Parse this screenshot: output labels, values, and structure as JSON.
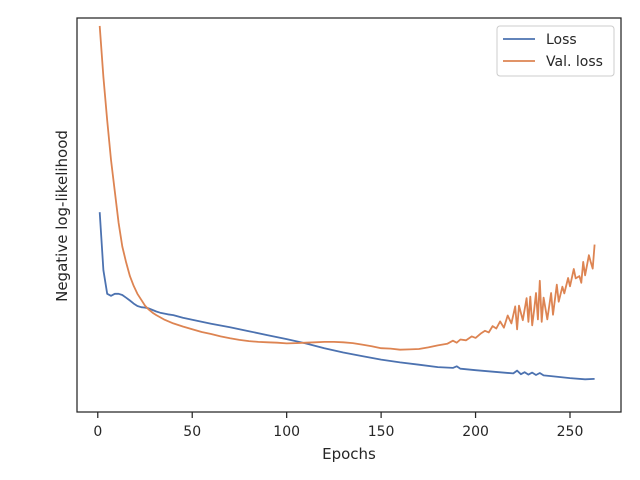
{
  "chart_data": {
    "type": "line",
    "title": "",
    "xlabel": "Epochs",
    "ylabel": "Negative log-likelihood",
    "xlim": [
      -11,
      277
    ],
    "ylim": [
      0,
      100
    ],
    "xticks": [
      0,
      50,
      100,
      150,
      200,
      250
    ],
    "yticks_visible": false,
    "grid": false,
    "legend_position": "top-right",
    "series": [
      {
        "name": "Loss",
        "color": "#4c72b0",
        "points": [
          [
            1,
            50.7
          ],
          [
            3,
            36
          ],
          [
            5,
            30
          ],
          [
            7,
            29.5
          ],
          [
            9,
            30
          ],
          [
            11,
            30
          ],
          [
            13,
            29.7
          ],
          [
            15,
            29
          ],
          [
            17,
            28.3
          ],
          [
            19,
            27.5
          ],
          [
            21,
            26.9
          ],
          [
            23,
            26.6
          ],
          [
            25,
            26.5
          ],
          [
            27,
            26.3
          ],
          [
            29,
            25.9
          ],
          [
            31,
            25.5
          ],
          [
            33,
            25.2
          ],
          [
            35,
            25.0
          ],
          [
            37,
            24.8
          ],
          [
            40,
            24.6
          ],
          [
            45,
            23.9
          ],
          [
            50,
            23.4
          ],
          [
            60,
            22.4
          ],
          [
            70,
            21.5
          ],
          [
            80,
            20.5
          ],
          [
            90,
            19.5
          ],
          [
            100,
            18.5
          ],
          [
            110,
            17.4
          ],
          [
            120,
            16.2
          ],
          [
            130,
            15.1
          ],
          [
            140,
            14.2
          ],
          [
            150,
            13.3
          ],
          [
            160,
            12.6
          ],
          [
            170,
            12.0
          ],
          [
            180,
            11.4
          ],
          [
            188,
            11.2
          ],
          [
            190,
            11.6
          ],
          [
            192,
            11.0
          ],
          [
            200,
            10.6
          ],
          [
            210,
            10.2
          ],
          [
            220,
            9.8
          ],
          [
            222,
            10.5
          ],
          [
            224,
            9.6
          ],
          [
            226,
            10.1
          ],
          [
            228,
            9.5
          ],
          [
            230,
            10.0
          ],
          [
            232,
            9.4
          ],
          [
            234,
            9.9
          ],
          [
            236,
            9.3
          ],
          [
            240,
            9.1
          ],
          [
            250,
            8.6
          ],
          [
            258,
            8.3
          ],
          [
            263,
            8.4
          ]
        ]
      },
      {
        "name": "Val. loss",
        "color": "#dd8452",
        "points": [
          [
            1,
            98
          ],
          [
            3,
            85
          ],
          [
            5,
            74
          ],
          [
            7,
            64
          ],
          [
            9,
            56
          ],
          [
            11,
            48
          ],
          [
            13,
            42
          ],
          [
            15,
            38
          ],
          [
            17,
            34.5
          ],
          [
            19,
            32
          ],
          [
            21,
            30
          ],
          [
            23,
            28.5
          ],
          [
            25,
            27
          ],
          [
            27,
            26
          ],
          [
            29,
            25.2
          ],
          [
            31,
            24.6
          ],
          [
            35,
            23.5
          ],
          [
            40,
            22.5
          ],
          [
            45,
            21.7
          ],
          [
            50,
            21
          ],
          [
            55,
            20.3
          ],
          [
            60,
            19.8
          ],
          [
            65,
            19.2
          ],
          [
            70,
            18.7
          ],
          [
            75,
            18.3
          ],
          [
            80,
            18.0
          ],
          [
            85,
            17.8
          ],
          [
            90,
            17.7
          ],
          [
            95,
            17.6
          ],
          [
            100,
            17.4
          ],
          [
            105,
            17.5
          ],
          [
            110,
            17.6
          ],
          [
            115,
            17.7
          ],
          [
            120,
            17.8
          ],
          [
            125,
            17.8
          ],
          [
            130,
            17.7
          ],
          [
            135,
            17.5
          ],
          [
            140,
            17.1
          ],
          [
            145,
            16.7
          ],
          [
            150,
            16.2
          ],
          [
            155,
            16.1
          ],
          [
            160,
            15.8
          ],
          [
            165,
            15.9
          ],
          [
            170,
            16.0
          ],
          [
            175,
            16.4
          ],
          [
            180,
            16.9
          ],
          [
            185,
            17.3
          ],
          [
            188,
            18.1
          ],
          [
            190,
            17.6
          ],
          [
            192,
            18.4
          ],
          [
            195,
            18.2
          ],
          [
            198,
            19.2
          ],
          [
            200,
            18.8
          ],
          [
            203,
            20.0
          ],
          [
            205,
            20.6
          ],
          [
            207,
            20.2
          ],
          [
            209,
            21.8
          ],
          [
            211,
            21.2
          ],
          [
            213,
            23.0
          ],
          [
            215,
            21.4
          ],
          [
            217,
            24.5
          ],
          [
            219,
            22.5
          ],
          [
            221,
            26.8
          ],
          [
            222,
            21.0
          ],
          [
            223,
            27.0
          ],
          [
            225,
            23.3
          ],
          [
            227,
            28.9
          ],
          [
            228,
            22.9
          ],
          [
            229,
            29.3
          ],
          [
            230,
            22.0
          ],
          [
            231,
            25.8
          ],
          [
            232,
            30.2
          ],
          [
            233,
            23.5
          ],
          [
            234,
            33.3
          ],
          [
            235,
            22.9
          ],
          [
            236,
            29.0
          ],
          [
            238,
            23.5
          ],
          [
            240,
            30.2
          ],
          [
            241,
            24.7
          ],
          [
            243,
            32.3
          ],
          [
            244,
            28.0
          ],
          [
            246,
            31.8
          ],
          [
            247,
            30.1
          ],
          [
            249,
            34.0
          ],
          [
            250,
            31.9
          ],
          [
            252,
            36.3
          ],
          [
            253,
            33.9
          ],
          [
            255,
            34.5
          ],
          [
            256,
            32.8
          ],
          [
            257,
            38.1
          ],
          [
            258,
            34.7
          ],
          [
            260,
            39.8
          ],
          [
            261,
            38.0
          ],
          [
            262,
            36.4
          ],
          [
            263,
            42.5
          ]
        ]
      }
    ]
  }
}
